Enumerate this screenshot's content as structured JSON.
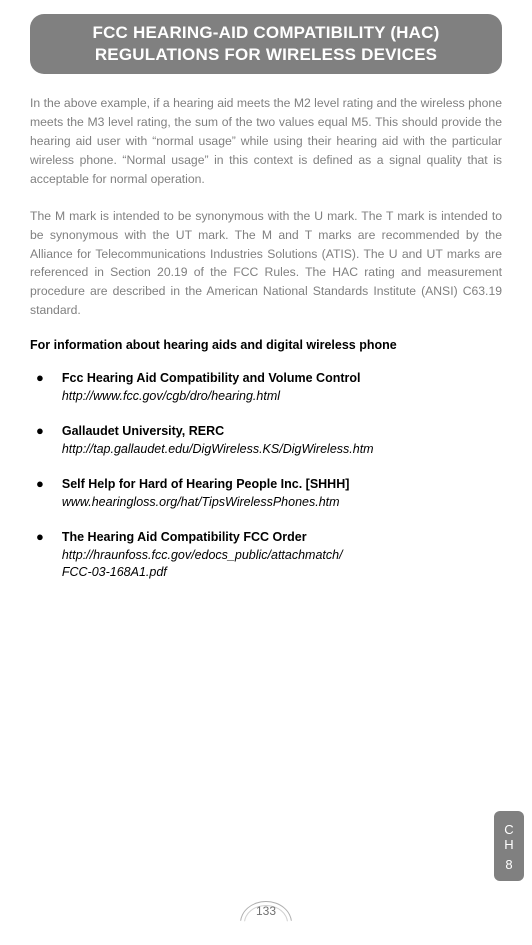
{
  "header": {
    "line1": "FCC HEARING-AID COMPATIBILITY (HAC)",
    "line2": "REGULATIONS FOR WIRELESS DEVICES"
  },
  "paragraphs": {
    "p1": "In the above example, if a hearing aid meets the M2 level rating and the wireless phone meets the M3 level rating, the sum of the two values equal M5. This should provide the hearing aid user with “normal usage” while using their hearing aid with the particular wireless phone. “Normal usage” in this context is defined as a signal quality that is acceptable for normal operation.",
    "p2": "The M mark is intended to be synonymous with the U mark. The T mark is intended to be synonymous with the UT mark. The M and T marks are recommended by the Alliance for Telecommunications Industries Solutions (ATIS). The U and UT marks are referenced in Section 20.19 of the FCC Rules. The HAC rating and measurement procedure are described in the American National Standards Institute (ANSI) C63.19 standard."
  },
  "section_heading": "For information about hearing aids and digital wireless phone",
  "links": [
    {
      "title": "Fcc Hearing Aid Compatibility and Volume Control",
      "url": "http://www.fcc.gov/cgb/dro/hearing.html"
    },
    {
      "title": "Gallaudet University, RERC",
      "url": "http://tap.gallaudet.edu/DigWireless.KS/DigWireless.htm"
    },
    {
      "title": "Self Help for Hard of Hearing People Inc. [SHHH]",
      "url": "www.hearingloss.org/hat/TipsWirelessPhones.htm"
    },
    {
      "title": "The Hearing Aid Compatibility FCC Order",
      "url": "http://hraunfoss.fcc.gov/edocs_public/attachmatch/\nFCC-03-168A1.pdf"
    }
  ],
  "sidetab": {
    "ch": "C\nH",
    "num": "8"
  },
  "page_number": "133"
}
